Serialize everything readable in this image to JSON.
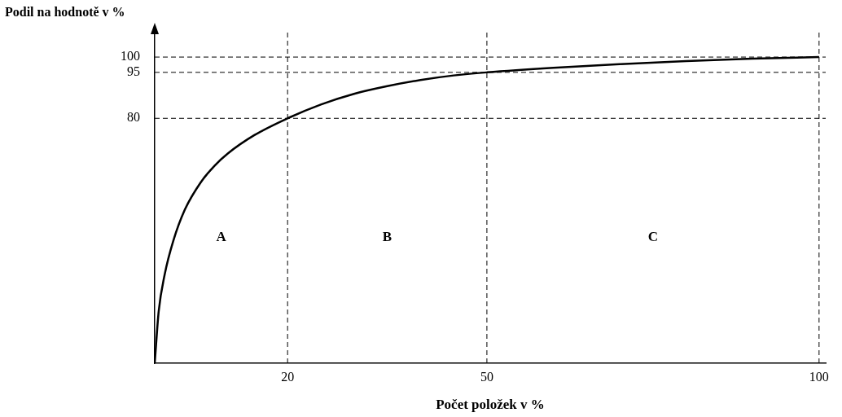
{
  "chart_data": {
    "type": "line",
    "xlabel": "Počet položek v %",
    "ylabel": "Podil na hodnotě v %",
    "x": [
      0,
      0.6,
      1.5,
      2.8,
      4.5,
      6.9,
      9,
      11,
      15,
      20,
      25,
      30,
      35,
      40,
      45,
      50,
      60,
      70,
      80,
      90,
      100
    ],
    "series": [
      {
        "color": "#000000",
        "values": [
          0,
          17,
          29,
          40,
          50,
          59,
          64.5,
          68.5,
          74.5,
          80,
          84.5,
          88,
          90.5,
          92.5,
          94,
          95,
          96.5,
          97.7,
          98.7,
          99.5,
          100
        ]
      }
    ],
    "xlim": [
      0,
      101
    ],
    "xticks": [
      20,
      50,
      100
    ],
    "ylim": [
      0,
      108
    ],
    "yticks": [
      80,
      95,
      100
    ],
    "ref_lines": [
      {
        "axis": "x",
        "value": 20,
        "color": "#000000",
        "line_style": "dashed"
      },
      {
        "axis": "x",
        "value": 50,
        "color": "#000000",
        "line_style": "dashed"
      },
      {
        "axis": "x",
        "value": 100,
        "color": "#000000",
        "line_style": "dashed"
      },
      {
        "axis": "y",
        "value": 80,
        "color": "#000000",
        "line_style": "dashed"
      },
      {
        "axis": "y",
        "value": 95,
        "color": "#000000",
        "line_style": "dashed"
      },
      {
        "axis": "y",
        "value": 100,
        "color": "#000000",
        "line_style": "dashed"
      }
    ],
    "annotations": [
      "A",
      "B",
      "C"
    ],
    "grid": false,
    "legend": false,
    "marker": "none",
    "line_style": "solid"
  }
}
